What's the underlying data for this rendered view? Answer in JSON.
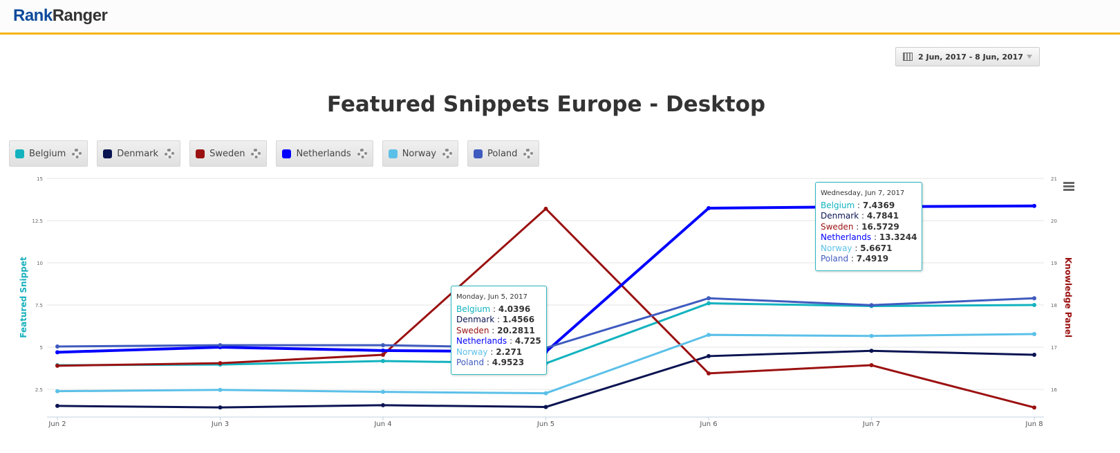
{
  "header": {
    "logo_part1": "Rank",
    "logo_part2": "Ranger"
  },
  "date_range": {
    "label": "2 Jun, 2017 - 8 Jun, 2017",
    "icon": "calendar-icon"
  },
  "colors": {
    "accent": "#f5b414",
    "brand": "#0d4a9b"
  },
  "chart_data": {
    "type": "line",
    "title": "Featured Snippets Europe - Desktop",
    "categories": [
      "Jun 2",
      "Jun 3",
      "Jun 4",
      "Jun 5",
      "Jun 6",
      "Jun 7",
      "Jun 8"
    ],
    "y_left": {
      "label": "Featured Snippet",
      "ticks": [
        "2.5",
        "5",
        "7.5",
        "10",
        "12.5",
        "15"
      ],
      "max": 15,
      "color": "#1ab0bd"
    },
    "y_right": {
      "label": "Knowledge Panel",
      "ticks": [
        "16",
        "17",
        "18",
        "19",
        "20",
        "21"
      ],
      "max": 21,
      "color": "#9b1111"
    },
    "grid": true,
    "legend_placement": "top-left",
    "series": [
      {
        "name": "Belgium",
        "color": "#12b3be",
        "axis": "left",
        "values": [
          3.93,
          3.97,
          4.18,
          4.0396,
          7.6,
          7.4369,
          7.5
        ]
      },
      {
        "name": "Denmark",
        "color": "#0b1452",
        "axis": "left",
        "values": [
          1.52,
          1.43,
          1.56,
          1.4566,
          4.47,
          4.7841,
          4.55
        ]
      },
      {
        "name": "Sweden",
        "color": "#9b1111",
        "axis": "right",
        "values": [
          16.56,
          16.62,
          16.82,
          20.2811,
          16.38,
          16.5729,
          15.57
        ]
      },
      {
        "name": "Netherlands",
        "color": "#0000ff",
        "axis": "left",
        "values": [
          4.7,
          5.0,
          4.8,
          4.725,
          13.24,
          13.3244,
          13.37
        ]
      },
      {
        "name": "Norway",
        "color": "#5bc0e8",
        "axis": "left",
        "values": [
          2.39,
          2.47,
          2.35,
          2.271,
          5.73,
          5.6671,
          5.78
        ]
      },
      {
        "name": "Poland",
        "color": "#3f5bbf",
        "axis": "left",
        "values": [
          5.04,
          5.12,
          5.12,
          4.9523,
          7.9,
          7.4919,
          7.9
        ]
      }
    ],
    "tooltips": [
      {
        "date": "Monday, Jun 5, 2017",
        "index": 3,
        "values": [
          "4.0396",
          "1.4566",
          "20.2811",
          "4.725",
          "2.271",
          "4.9523"
        ]
      },
      {
        "date": "Wednesday, Jun 7, 2017",
        "index": 5,
        "values": [
          "7.4369",
          "4.7841",
          "16.5729",
          "13.3244",
          "5.6671",
          "7.4919"
        ]
      }
    ]
  }
}
